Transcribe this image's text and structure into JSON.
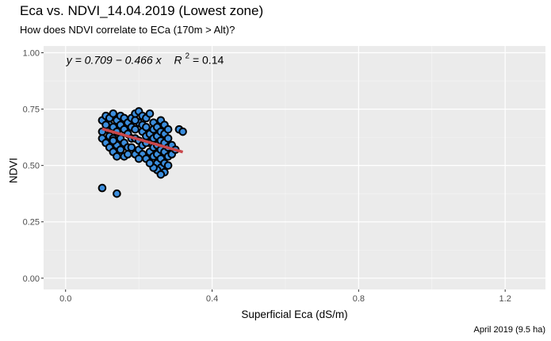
{
  "chart_data": {
    "type": "scatter",
    "title": "Eca vs. NDVI_14.04.2019 (Lowest zone)",
    "subtitle": "How does NDVI correlate to ECa (170m > Alt)?",
    "xlabel": "Superficial Eca (dS/m)",
    "ylabel": "NDVI",
    "caption": "April 2019 (9.5 ha)",
    "xlim": [
      -0.06,
      1.31
    ],
    "ylim": [
      -0.05,
      1.03
    ],
    "x_ticks": [
      0.0,
      0.4,
      0.8,
      1.2
    ],
    "x_tick_labels": [
      "0.0",
      "0.4",
      "0.8",
      "1.2"
    ],
    "y_ticks": [
      0.0,
      0.25,
      0.5,
      0.75,
      1.0
    ],
    "y_tick_labels": [
      "0.00",
      "0.25",
      "0.50",
      "0.75",
      "1.00"
    ],
    "grid": true,
    "annotation": {
      "equation": "y = 0.709 − 0.466 x",
      "r2_prefix": "R",
      "r2_exponent": "2",
      "r2_value": " = 0.14"
    },
    "regression": {
      "intercept": 0.709,
      "slope": -0.466,
      "x_range": [
        0.1,
        0.32
      ],
      "color": "#c9474b"
    },
    "point_fill": "#3b8ede",
    "point_stroke": "#000000",
    "panel_background": "#ebebeb",
    "points": [
      [
        0.1,
        0.4
      ],
      [
        0.14,
        0.375
      ],
      [
        0.1,
        0.7
      ],
      [
        0.11,
        0.72
      ],
      [
        0.12,
        0.71
      ],
      [
        0.13,
        0.73
      ],
      [
        0.12,
        0.68
      ],
      [
        0.11,
        0.66
      ],
      [
        0.1,
        0.65
      ],
      [
        0.1,
        0.62
      ],
      [
        0.11,
        0.6
      ],
      [
        0.12,
        0.63
      ],
      [
        0.13,
        0.67
      ],
      [
        0.14,
        0.7
      ],
      [
        0.15,
        0.72
      ],
      [
        0.16,
        0.71
      ],
      [
        0.15,
        0.68
      ],
      [
        0.14,
        0.65
      ],
      [
        0.13,
        0.62
      ],
      [
        0.12,
        0.58
      ],
      [
        0.13,
        0.56
      ],
      [
        0.14,
        0.59
      ],
      [
        0.15,
        0.62
      ],
      [
        0.16,
        0.66
      ],
      [
        0.17,
        0.69
      ],
      [
        0.17,
        0.64
      ],
      [
        0.16,
        0.6
      ],
      [
        0.15,
        0.57
      ],
      [
        0.16,
        0.54
      ],
      [
        0.17,
        0.58
      ],
      [
        0.18,
        0.62
      ],
      [
        0.18,
        0.67
      ],
      [
        0.18,
        0.71
      ],
      [
        0.19,
        0.73
      ],
      [
        0.2,
        0.74
      ],
      [
        0.21,
        0.72
      ],
      [
        0.2,
        0.69
      ],
      [
        0.19,
        0.66
      ],
      [
        0.19,
        0.62
      ],
      [
        0.18,
        0.58
      ],
      [
        0.19,
        0.55
      ],
      [
        0.2,
        0.57
      ],
      [
        0.2,
        0.61
      ],
      [
        0.21,
        0.65
      ],
      [
        0.21,
        0.68
      ],
      [
        0.22,
        0.71
      ],
      [
        0.23,
        0.73
      ],
      [
        0.22,
        0.67
      ],
      [
        0.22,
        0.63
      ],
      [
        0.21,
        0.59
      ],
      [
        0.21,
        0.55
      ],
      [
        0.22,
        0.53
      ],
      [
        0.23,
        0.56
      ],
      [
        0.23,
        0.6
      ],
      [
        0.23,
        0.64
      ],
      [
        0.24,
        0.69
      ],
      [
        0.24,
        0.66
      ],
      [
        0.24,
        0.62
      ],
      [
        0.24,
        0.58
      ],
      [
        0.24,
        0.54
      ],
      [
        0.25,
        0.51
      ],
      [
        0.25,
        0.55
      ],
      [
        0.25,
        0.59
      ],
      [
        0.25,
        0.63
      ],
      [
        0.25,
        0.67
      ],
      [
        0.26,
        0.7
      ],
      [
        0.26,
        0.65
      ],
      [
        0.26,
        0.61
      ],
      [
        0.26,
        0.57
      ],
      [
        0.26,
        0.53
      ],
      [
        0.26,
        0.49
      ],
      [
        0.27,
        0.47
      ],
      [
        0.27,
        0.51
      ],
      [
        0.27,
        0.56
      ],
      [
        0.27,
        0.6
      ],
      [
        0.27,
        0.64
      ],
      [
        0.27,
        0.68
      ],
      [
        0.28,
        0.62
      ],
      [
        0.28,
        0.58
      ],
      [
        0.28,
        0.54
      ],
      [
        0.28,
        0.5
      ],
      [
        0.29,
        0.55
      ],
      [
        0.29,
        0.59
      ],
      [
        0.3,
        0.57
      ],
      [
        0.31,
        0.66
      ],
      [
        0.32,
        0.65
      ],
      [
        0.25,
        0.48
      ],
      [
        0.26,
        0.46
      ],
      [
        0.24,
        0.49
      ],
      [
        0.17,
        0.55
      ],
      [
        0.14,
        0.54
      ],
      [
        0.13,
        0.61
      ],
      [
        0.11,
        0.68
      ],
      [
        0.19,
        0.7
      ],
      [
        0.22,
        0.6
      ],
      [
        0.2,
        0.53
      ],
      [
        0.23,
        0.51
      ],
      [
        0.28,
        0.66
      ]
    ]
  }
}
